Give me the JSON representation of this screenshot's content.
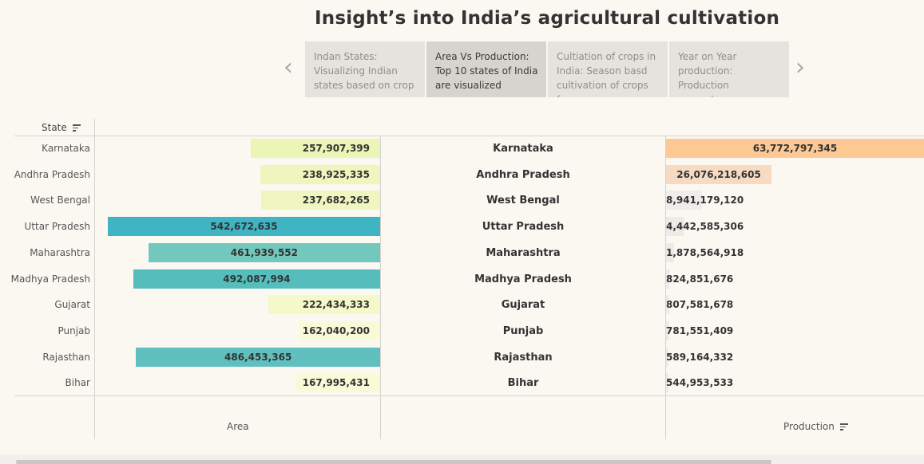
{
  "title": "Insight’s into India’s agricultural cultivation",
  "nav": {
    "prev_icon": "chevron-left-icon",
    "next_icon": "chevron-right-icon",
    "prev_glyph": "‹",
    "next_glyph": "›"
  },
  "story_points": [
    {
      "text": "Indan States: Visualizing Indian states based on crop",
      "active": false
    },
    {
      "text": "Area Vs Production: Top 10 states of India are visualized",
      "active": true
    },
    {
      "text": "Cultiation of crops in India: Season basd cultivation of crops for",
      "active": false
    },
    {
      "text": "Year on Year production: Production percentages are oven",
      "active": false
    }
  ],
  "header": {
    "state_label": "State"
  },
  "axis_titles": {
    "area": "Area",
    "production": "Production"
  },
  "chart_data": {
    "type": "bar",
    "categories": [
      "Karnataka",
      "Andhra Pradesh",
      "West Bengal",
      "Uttar Pradesh",
      "Maharashtra",
      "Madhya Pradesh",
      "Gujarat",
      "Punjab",
      "Rajasthan",
      "Bihar"
    ],
    "series": [
      {
        "name": "Area",
        "values": [
          257907399,
          238925335,
          237682265,
          542672635,
          461939552,
          492087994,
          222434333,
          162040200,
          486453365,
          167995431
        ],
        "labels": [
          "257,907,399",
          "238,925,335",
          "237,682,265",
          "542,672,635",
          "461,939,552",
          "492,087,994",
          "222,434,333",
          "162,040,200",
          "486,453,365",
          "167,995,431"
        ],
        "colors": [
          "#ebf5b5",
          "#eef6bd",
          "#eff6c0",
          "#3fb4c2",
          "#72c8bc",
          "#56bdbd",
          "#f3f9c9",
          "#f9fbd8",
          "#60c0bf",
          "#f8fbd7"
        ]
      },
      {
        "name": "Production",
        "values": [
          63772797345,
          26076218605,
          8941179120,
          4442585306,
          1878564918,
          824851676,
          807581678,
          781551409,
          589164332,
          544953533
        ],
        "labels": [
          "63,772,797,345",
          "26,076,218,605",
          "8,941,179,120",
          "4,442,585,306",
          "1,878,564,918",
          "824,851,676",
          "807,581,678",
          "781,551,409",
          "589,164,332",
          "544,953,533"
        ],
        "colors": [
          "#fdc894",
          "#f7dac2",
          "#efedea",
          "#ecebe8",
          "#ecebe8",
          "#ecebe8",
          "#ecebe8",
          "#ecebe8",
          "#ecebe8",
          "#ecebe8"
        ]
      }
    ],
    "xlabel_area": "Area",
    "xlabel_production": "Production",
    "ylabel": "State",
    "sorted_by": "Production"
  }
}
